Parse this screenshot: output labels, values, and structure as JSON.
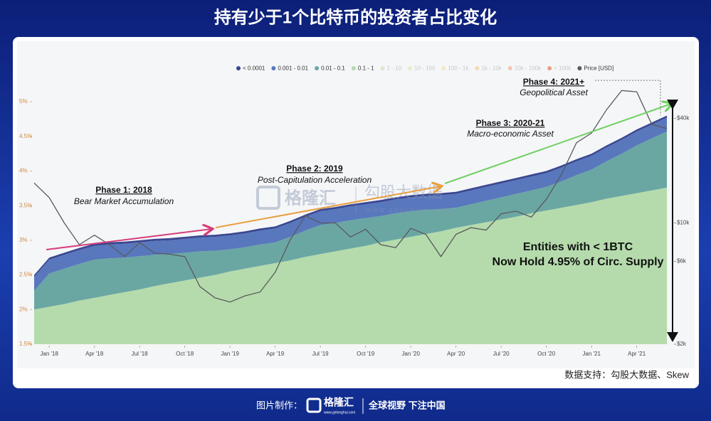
{
  "chart_data": {
    "type": "area",
    "title": "持有少于1个比特币的投资者占比变化",
    "x": [
      "2017-12",
      "2018-01",
      "2018-02",
      "2018-03",
      "2018-04",
      "2018-05",
      "2018-06",
      "2018-07",
      "2018-08",
      "2018-09",
      "2018-10",
      "2018-11",
      "2018-12",
      "2019-01",
      "2019-02",
      "2019-03",
      "2019-04",
      "2019-05",
      "2019-06",
      "2019-07",
      "2019-08",
      "2019-09",
      "2019-10",
      "2019-11",
      "2019-12",
      "2020-01",
      "2020-02",
      "2020-03",
      "2020-04",
      "2020-05",
      "2020-06",
      "2020-07",
      "2020-08",
      "2020-09",
      "2020-10",
      "2020-11",
      "2020-12",
      "2021-01",
      "2021-02",
      "2021-03",
      "2021-04",
      "2021-05",
      "2021-06"
    ],
    "xlim": [
      "2017-12",
      "2021-06"
    ],
    "xticks": [
      {
        "value": "2018-01",
        "label": "Jan '18"
      },
      {
        "value": "2018-04",
        "label": "Apr '18"
      },
      {
        "value": "2018-07",
        "label": "Jul '18"
      },
      {
        "value": "2018-10",
        "label": "Oct '18"
      },
      {
        "value": "2019-01",
        "label": "Jan '19"
      },
      {
        "value": "2019-04",
        "label": "Apr '19"
      },
      {
        "value": "2019-07",
        "label": "Jul '19"
      },
      {
        "value": "2019-10",
        "label": "Oct '19"
      },
      {
        "value": "2020-01",
        "label": "Jan '20"
      },
      {
        "value": "2020-04",
        "label": "Apr '20"
      },
      {
        "value": "2020-07",
        "label": "Jul '20"
      },
      {
        "value": "2020-10",
        "label": "Oct '20"
      },
      {
        "value": "2021-01",
        "label": "Jan '21"
      },
      {
        "value": "2021-04",
        "label": "Apr '21"
      }
    ],
    "ylim": [
      1.5,
      5
    ],
    "yticks": [
      {
        "value": 1.5,
        "label": "1.5%"
      },
      {
        "value": 2,
        "label": "2%"
      },
      {
        "value": 2.5,
        "label": "2.5%"
      },
      {
        "value": 3,
        "label": "3%"
      },
      {
        "value": 3.5,
        "label": "3.5%"
      },
      {
        "value": 4,
        "label": "4%"
      },
      {
        "value": 4.5,
        "label": "4.5%"
      },
      {
        "value": 5,
        "label": "5%"
      }
    ],
    "y2lim": [
      2000,
      50000
    ],
    "y2_log": true,
    "y2ticks": [
      {
        "value": 2000,
        "label": "$2k"
      },
      {
        "value": 6000,
        "label": "$6k"
      },
      {
        "value": 10000,
        "label": "$10k"
      },
      {
        "value": 40000,
        "label": "$40k"
      }
    ],
    "stacked": true,
    "series": [
      {
        "name": "< 0.0001",
        "color": "#3a4790",
        "values": [
          0.03,
          0.03,
          0.03,
          0.03,
          0.03,
          0.03,
          0.03,
          0.03,
          0.03,
          0.03,
          0.03,
          0.03,
          0.03,
          0.03,
          0.03,
          0.03,
          0.03,
          0.03,
          0.03,
          0.03,
          0.03,
          0.03,
          0.03,
          0.03,
          0.03,
          0.03,
          0.03,
          0.03,
          0.03,
          0.03,
          0.03,
          0.03,
          0.03,
          0.03,
          0.03,
          0.03,
          0.03,
          0.03,
          0.03,
          0.03,
          0.03,
          0.03,
          0.03
        ]
      },
      {
        "name": "0.001 - 0.01",
        "color": "#5877bd",
        "values": [
          0.2,
          0.2,
          0.2,
          0.2,
          0.2,
          0.2,
          0.2,
          0.2,
          0.2,
          0.2,
          0.2,
          0.2,
          0.2,
          0.2,
          0.2,
          0.2,
          0.2,
          0.2,
          0.2,
          0.2,
          0.2,
          0.2,
          0.2,
          0.2,
          0.2,
          0.2,
          0.2,
          0.2,
          0.2,
          0.2,
          0.2,
          0.2,
          0.2,
          0.2,
          0.2,
          0.2,
          0.2,
          0.2,
          0.2,
          0.2,
          0.2,
          0.2,
          0.2
        ]
      },
      {
        "name": "0.01 - 0.1",
        "color": "#6aa7a3",
        "values": [
          0.27,
          0.48,
          0.51,
          0.53,
          0.55,
          0.53,
          0.5,
          0.48,
          0.45,
          0.42,
          0.4,
          0.38,
          0.35,
          0.32,
          0.31,
          0.31,
          0.3,
          0.34,
          0.38,
          0.42,
          0.41,
          0.41,
          0.4,
          0.38,
          0.38,
          0.37,
          0.35,
          0.32,
          0.29,
          0.3,
          0.31,
          0.32,
          0.33,
          0.33,
          0.34,
          0.38,
          0.43,
          0.47,
          0.54,
          0.61,
          0.69,
          0.75,
          0.81
        ]
      },
      {
        "name": "0.1 - 1",
        "color": "#b5dbac",
        "values": [
          2.0,
          2.04,
          2.08,
          2.13,
          2.17,
          2.21,
          2.25,
          2.29,
          2.34,
          2.38,
          2.42,
          2.46,
          2.5,
          2.55,
          2.59,
          2.63,
          2.67,
          2.71,
          2.76,
          2.8,
          2.84,
          2.88,
          2.92,
          2.97,
          3.01,
          3.05,
          3.09,
          3.13,
          3.18,
          3.22,
          3.26,
          3.3,
          3.34,
          3.39,
          3.43,
          3.47,
          3.51,
          3.55,
          3.6,
          3.64,
          3.68,
          3.72,
          3.76
        ]
      },
      {
        "name": "Price [USD]",
        "color": "#5a5a5a",
        "type": "line",
        "axis": "y2",
        "values": [
          17000,
          14000,
          10000,
          7500,
          8500,
          7500,
          6400,
          7700,
          6700,
          6600,
          6400,
          4300,
          3700,
          3500,
          3800,
          4000,
          5200,
          8000,
          11000,
          10000,
          10000,
          8300,
          9200,
          7500,
          7200,
          9300,
          8600,
          6400,
          8600,
          9400,
          9100,
          11300,
          11700,
          10800,
          13700,
          19000,
          29000,
          33000,
          45000,
          58000,
          57000,
          37000,
          35000
        ]
      }
    ],
    "legend_inactive": [
      {
        "name": "1 - 10",
        "color": "#c8e3a8"
      },
      {
        "name": "10 - 100",
        "color": "#dbe9a6"
      },
      {
        "name": "100 - 1k",
        "color": "#efe39c"
      },
      {
        "name": "1k - 10k",
        "color": "#f2c98f"
      },
      {
        "name": "10k - 100k",
        "color": "#efac80"
      },
      {
        "name": "> 100k",
        "color": "#da6a40"
      }
    ],
    "annotations": [
      "Phase 1: 2018",
      "Bear Market Accumulation",
      "Phase 2: 2019",
      "Post-Capitulation Acceleration",
      "Phase 3: 2020-21",
      "Macro-economic Asset",
      "Phase 4: 2021+",
      "Geopolitical Asset",
      "Entities with < 1BTC",
      "Now Hold 4.95% of Circ. Supply"
    ],
    "source": "数据支持：勾股大数据、Skew"
  },
  "watermark": {
    "brand": "格隆汇",
    "partner": "勾股大数据",
    "url": "www.gogudata.com"
  },
  "footer": {
    "label": "图片制作：",
    "brand": "格隆汇",
    "brand_url": "www.gelonghui.com",
    "slogan": "全球视野 下注中国"
  }
}
